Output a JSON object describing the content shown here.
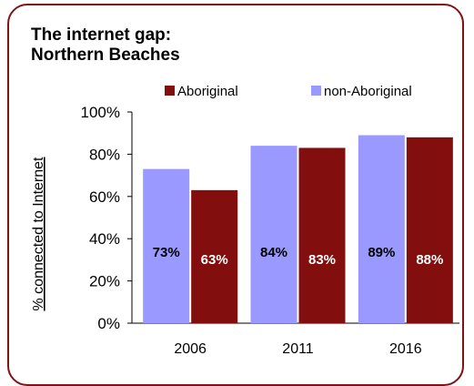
{
  "title_line1": "The internet gap:",
  "title_line2": "Northern Beaches",
  "colors": {
    "frame": "#7f1416",
    "aboriginal": "#820e0e",
    "non_aboriginal": "#9999ff"
  },
  "chart_data": {
    "type": "bar",
    "title": "The internet gap: Northern Beaches",
    "ylabel": "% connected to Internet",
    "xlabel": "",
    "categories": [
      "2006",
      "2011",
      "2016"
    ],
    "ylim": [
      0,
      100
    ],
    "yticks": [
      0,
      20,
      40,
      60,
      80,
      100
    ],
    "ytick_labels": [
      "0%",
      "20%",
      "40%",
      "60%",
      "80%",
      "100%"
    ],
    "legend_position": "top",
    "grid": false,
    "series": [
      {
        "name": "non-Aboriginal",
        "color": "#9999ff",
        "values": [
          73,
          84,
          89
        ],
        "labels": [
          "73%",
          "84%",
          "89%"
        ],
        "label_color": "#000000"
      },
      {
        "name": "Aboriginal",
        "color": "#820e0e",
        "values": [
          63,
          83,
          88
        ],
        "labels": [
          "63%",
          "83%",
          "88%"
        ],
        "label_color": "#ffffff"
      }
    ],
    "legend_order": [
      "Aboriginal",
      "non-Aboriginal"
    ]
  }
}
